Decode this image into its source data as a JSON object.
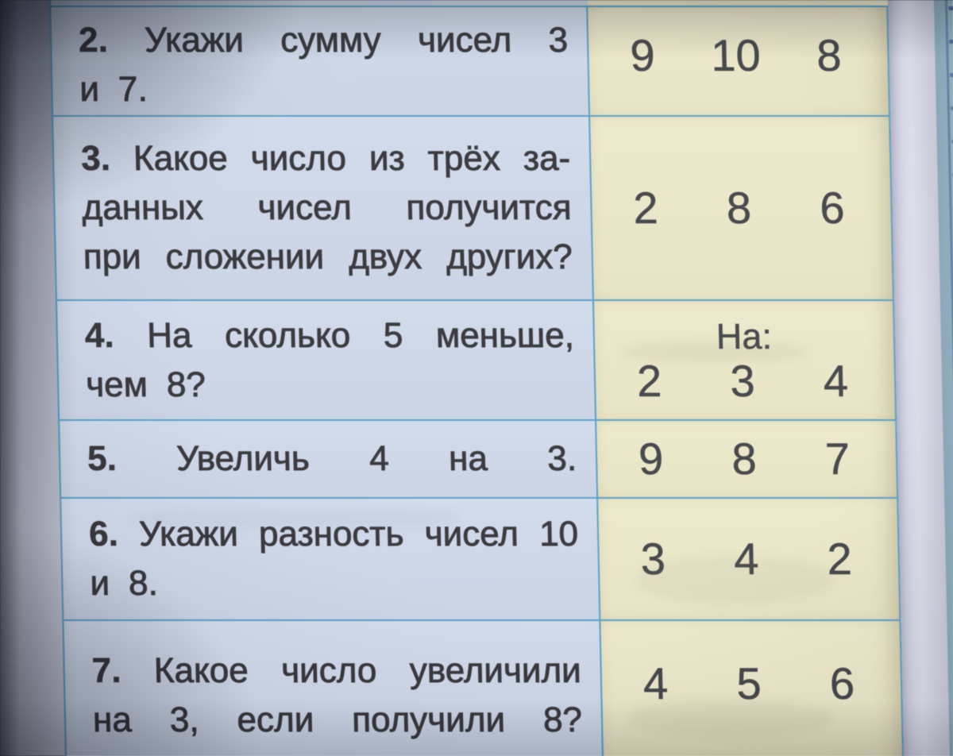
{
  "table": {
    "rows": [
      {
        "question": "2. Укажи сумму чисел 3 и 7.",
        "question_lines": [
          [
            "2.",
            "Укажи",
            "сумму",
            "чисел",
            "3"
          ],
          [
            "и",
            "7."
          ]
        ],
        "answer_options": [
          "9",
          "10",
          "8"
        ]
      },
      {
        "question": "3. Какое число из трёх заданных чисел получится при сложении двух других?",
        "question_lines": [
          [
            "3.",
            "Какое",
            "число",
            "из",
            "трёх",
            "за-"
          ],
          [
            "данных",
            "чисел",
            "получится"
          ],
          [
            "при",
            "сложении",
            "двух",
            "других?"
          ]
        ],
        "answer_options": [
          "2",
          "8",
          "6"
        ]
      },
      {
        "question": "4. На сколько 5 меньше, чем 8?",
        "question_lines": [
          [
            "4.",
            "На",
            "сколько",
            "5",
            "меньше,"
          ],
          [
            "чем",
            "8?"
          ]
        ],
        "answer_prefix": "На:",
        "answer_options": [
          "2",
          "3",
          "4"
        ]
      },
      {
        "question": "5. Увеличь 4 на 3.",
        "question_lines": [
          [
            "5.",
            "Увеличь",
            "4",
            "на",
            "3."
          ]
        ],
        "answer_options": [
          "9",
          "8",
          "7"
        ]
      },
      {
        "question": "6. Укажи разность чисел 10 и 8.",
        "question_lines": [
          [
            "6.",
            "Укажи",
            "разность",
            "чисел",
            "10"
          ],
          [
            "и",
            "8."
          ]
        ],
        "answer_options": [
          "3",
          "4",
          "2"
        ]
      },
      {
        "question": "7. Какое число увеличили на 3, если получили 8?",
        "question_lines": [
          [
            "7.",
            "Какое",
            "число",
            "увеличили"
          ],
          [
            "на",
            "3,",
            "если",
            "получили",
            "8?"
          ]
        ],
        "answer_options": [
          "4",
          "5",
          "6"
        ]
      }
    ]
  },
  "colors": {
    "grid_line": "#4a97c2",
    "question_cell": "#cbd6e9",
    "answer_cell": "#ebe7c8",
    "question_text": "#26262b",
    "answer_text": "#35363c"
  }
}
